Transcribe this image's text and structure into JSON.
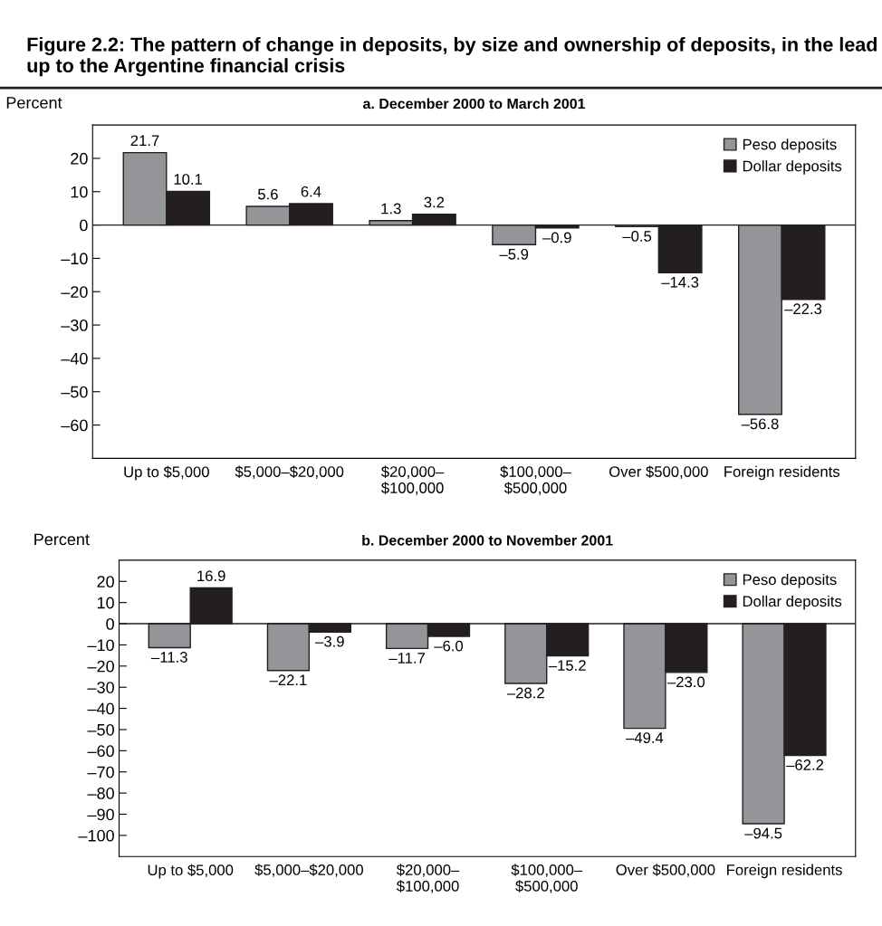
{
  "chart_data": [
    {
      "type": "bar",
      "title": "Figure 2.2: The pattern of change in deposits, by size and ownership of deposits, in the lead up to the Argentine financial crisis",
      "subtitle": "a. December 2000 to March 2001",
      "ylabel": "Percent",
      "categories": [
        "Up to $5,000",
        "$5,000–$20,000",
        "$20,000–\n$100,000",
        "$100,000–\n$500,000",
        "Over $500,000",
        "Foreign residents"
      ],
      "series": [
        {
          "name": "Peso deposits",
          "color": "#939598",
          "values": [
            21.7,
            5.6,
            1.3,
            -5.9,
            -0.5,
            -56.8
          ],
          "value_labels": [
            "21.7",
            "5.6",
            "1.3",
            "–5.9",
            "–0.5",
            "–56.8"
          ]
        },
        {
          "name": "Dollar deposits",
          "color": "#231f20",
          "values": [
            10.1,
            6.4,
            3.2,
            -0.9,
            -14.3,
            -22.3
          ],
          "value_labels": [
            "10.1",
            "6.4",
            "3.2",
            "–0.9",
            "–14.3",
            "–22.3"
          ]
        }
      ],
      "ylim": [
        -70,
        30
      ],
      "yticks": [
        {
          "value": 20,
          "label": "20"
        },
        {
          "value": 10,
          "label": "10"
        },
        {
          "value": 0,
          "label": "0"
        },
        {
          "value": -10,
          "label": "–10"
        },
        {
          "value": -20,
          "label": "–20"
        },
        {
          "value": -30,
          "label": "–30"
        },
        {
          "value": -40,
          "label": "–40"
        },
        {
          "value": -50,
          "label": "–50"
        },
        {
          "value": -60,
          "label": "–60"
        }
      ],
      "ref_lines": [
        {
          "axis": "y",
          "value": 0,
          "color": "#231f20"
        }
      ],
      "grid": false,
      "legend": "top right"
    },
    {
      "type": "bar",
      "subtitle": "b. December 2000 to November 2001",
      "ylabel": "Percent",
      "categories": [
        "Up to $5,000",
        "$5,000–$20,000",
        "$20,000–\n$100,000",
        "$100,000–\n$500,000",
        "Over $500,000",
        "Foreign residents"
      ],
      "series": [
        {
          "name": "Peso deposits",
          "color": "#939598",
          "values": [
            -11.3,
            -22.1,
            -11.7,
            -28.2,
            -49.4,
            -94.5
          ],
          "value_labels": [
            "–11.3",
            "–22.1",
            "–11.7",
            "–28.2",
            "–49.4",
            "–94.5"
          ]
        },
        {
          "name": "Dollar deposits",
          "color": "#231f20",
          "values": [
            16.9,
            -3.9,
            -6.0,
            -15.2,
            -23.0,
            -62.2
          ],
          "value_labels": [
            "16.9",
            "–3.9",
            "–6.0",
            "–15.2",
            "–23.0",
            "–62.2"
          ]
        }
      ],
      "ylim": [
        -110,
        30
      ],
      "yticks": [
        {
          "value": 20,
          "label": "20"
        },
        {
          "value": 10,
          "label": "10"
        },
        {
          "value": 0,
          "label": "0"
        },
        {
          "value": -10,
          "label": "–10"
        },
        {
          "value": -20,
          "label": "–20"
        },
        {
          "value": -30,
          "label": "–30"
        },
        {
          "value": -40,
          "label": "–40"
        },
        {
          "value": -50,
          "label": "–50"
        },
        {
          "value": -60,
          "label": "–60"
        },
        {
          "value": -70,
          "label": "–70"
        },
        {
          "value": -80,
          "label": "–80"
        },
        {
          "value": -90,
          "label": "–90"
        },
        {
          "value": -100,
          "label": "–100"
        }
      ],
      "ref_lines": [
        {
          "axis": "y",
          "value": 0,
          "color": "#231f20"
        }
      ],
      "grid": false,
      "legend": "top right"
    }
  ]
}
